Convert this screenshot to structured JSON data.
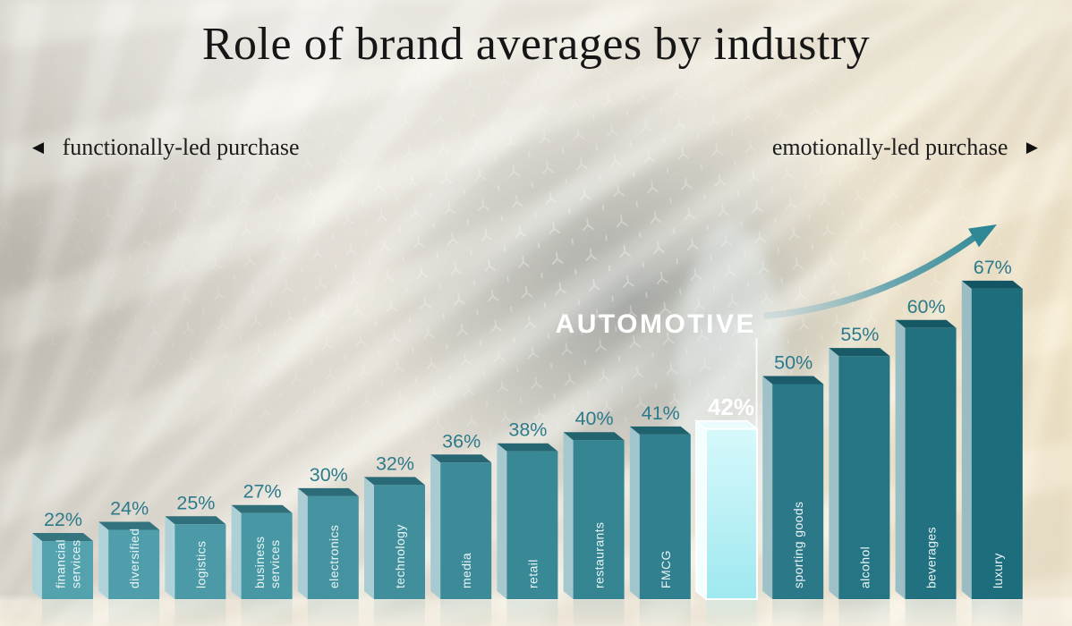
{
  "title": "Role of brand averages by industry",
  "direction": {
    "left_label": "functionally-led purchase",
    "right_label": "emotionally-led purchase",
    "left_arrow": "◀",
    "right_arrow": "▶"
  },
  "colors": {
    "title_text": "#161616",
    "bar_face_start": "#54a2ae",
    "bar_face_end": "#1e6d7d",
    "bar_top_shade": "#06323c",
    "value_text": "#2d7a8b",
    "category_text": "#e9f5f6",
    "highlight_fill_top": "#d6f9fb",
    "highlight_fill_bottom": "#9fe8f0",
    "highlight_edge": "#ffffff",
    "highlight_value_text": "#ffffff",
    "highlight_title_text": "#ffffff",
    "arrow_tail": "#b9cfd4",
    "arrow_head": "#2f8795",
    "sparkle": "#ffffff"
  },
  "chart_data": {
    "type": "bar",
    "title": "Role of brand averages by industry",
    "unit": "%",
    "axis": "none",
    "legend": "none",
    "x_axis_semantics": {
      "left": "functionally-led purchase",
      "right": "emotionally-led purchase"
    },
    "categories": [
      "financial services",
      "diversified",
      "logistics",
      "business services",
      "electronics",
      "technology",
      "media",
      "retail",
      "restaurants",
      "FMCG",
      "automotive",
      "sporting goods",
      "alcohol",
      "beverages",
      "luxury"
    ],
    "category_lines": [
      [
        "financial",
        "services"
      ],
      [
        "diversified"
      ],
      [
        "logistics"
      ],
      [
        "business",
        "services"
      ],
      [
        "electronics"
      ],
      [
        "technology"
      ],
      [
        "media"
      ],
      [
        "retail"
      ],
      [
        "restaurants"
      ],
      [
        "FMCG"
      ],
      [],
      [
        "sporting goods"
      ],
      [
        "alcohol"
      ],
      [
        "beverages"
      ],
      [
        "luxury"
      ]
    ],
    "values": [
      22,
      24,
      25,
      27,
      30,
      32,
      36,
      38,
      40,
      41,
      42,
      50,
      55,
      60,
      67
    ],
    "value_labels": [
      "22%",
      "24%",
      "25%",
      "27%",
      "30%",
      "32%",
      "36%",
      "38%",
      "40%",
      "41%",
      "42%",
      "50%",
      "55%",
      "60%",
      "67%"
    ],
    "highlight": {
      "index": 10,
      "label": "AUTOMOTIVE",
      "value_label": "42%"
    },
    "annotations": [
      "upward trend arrow pointing to emotionally-led industries"
    ]
  }
}
